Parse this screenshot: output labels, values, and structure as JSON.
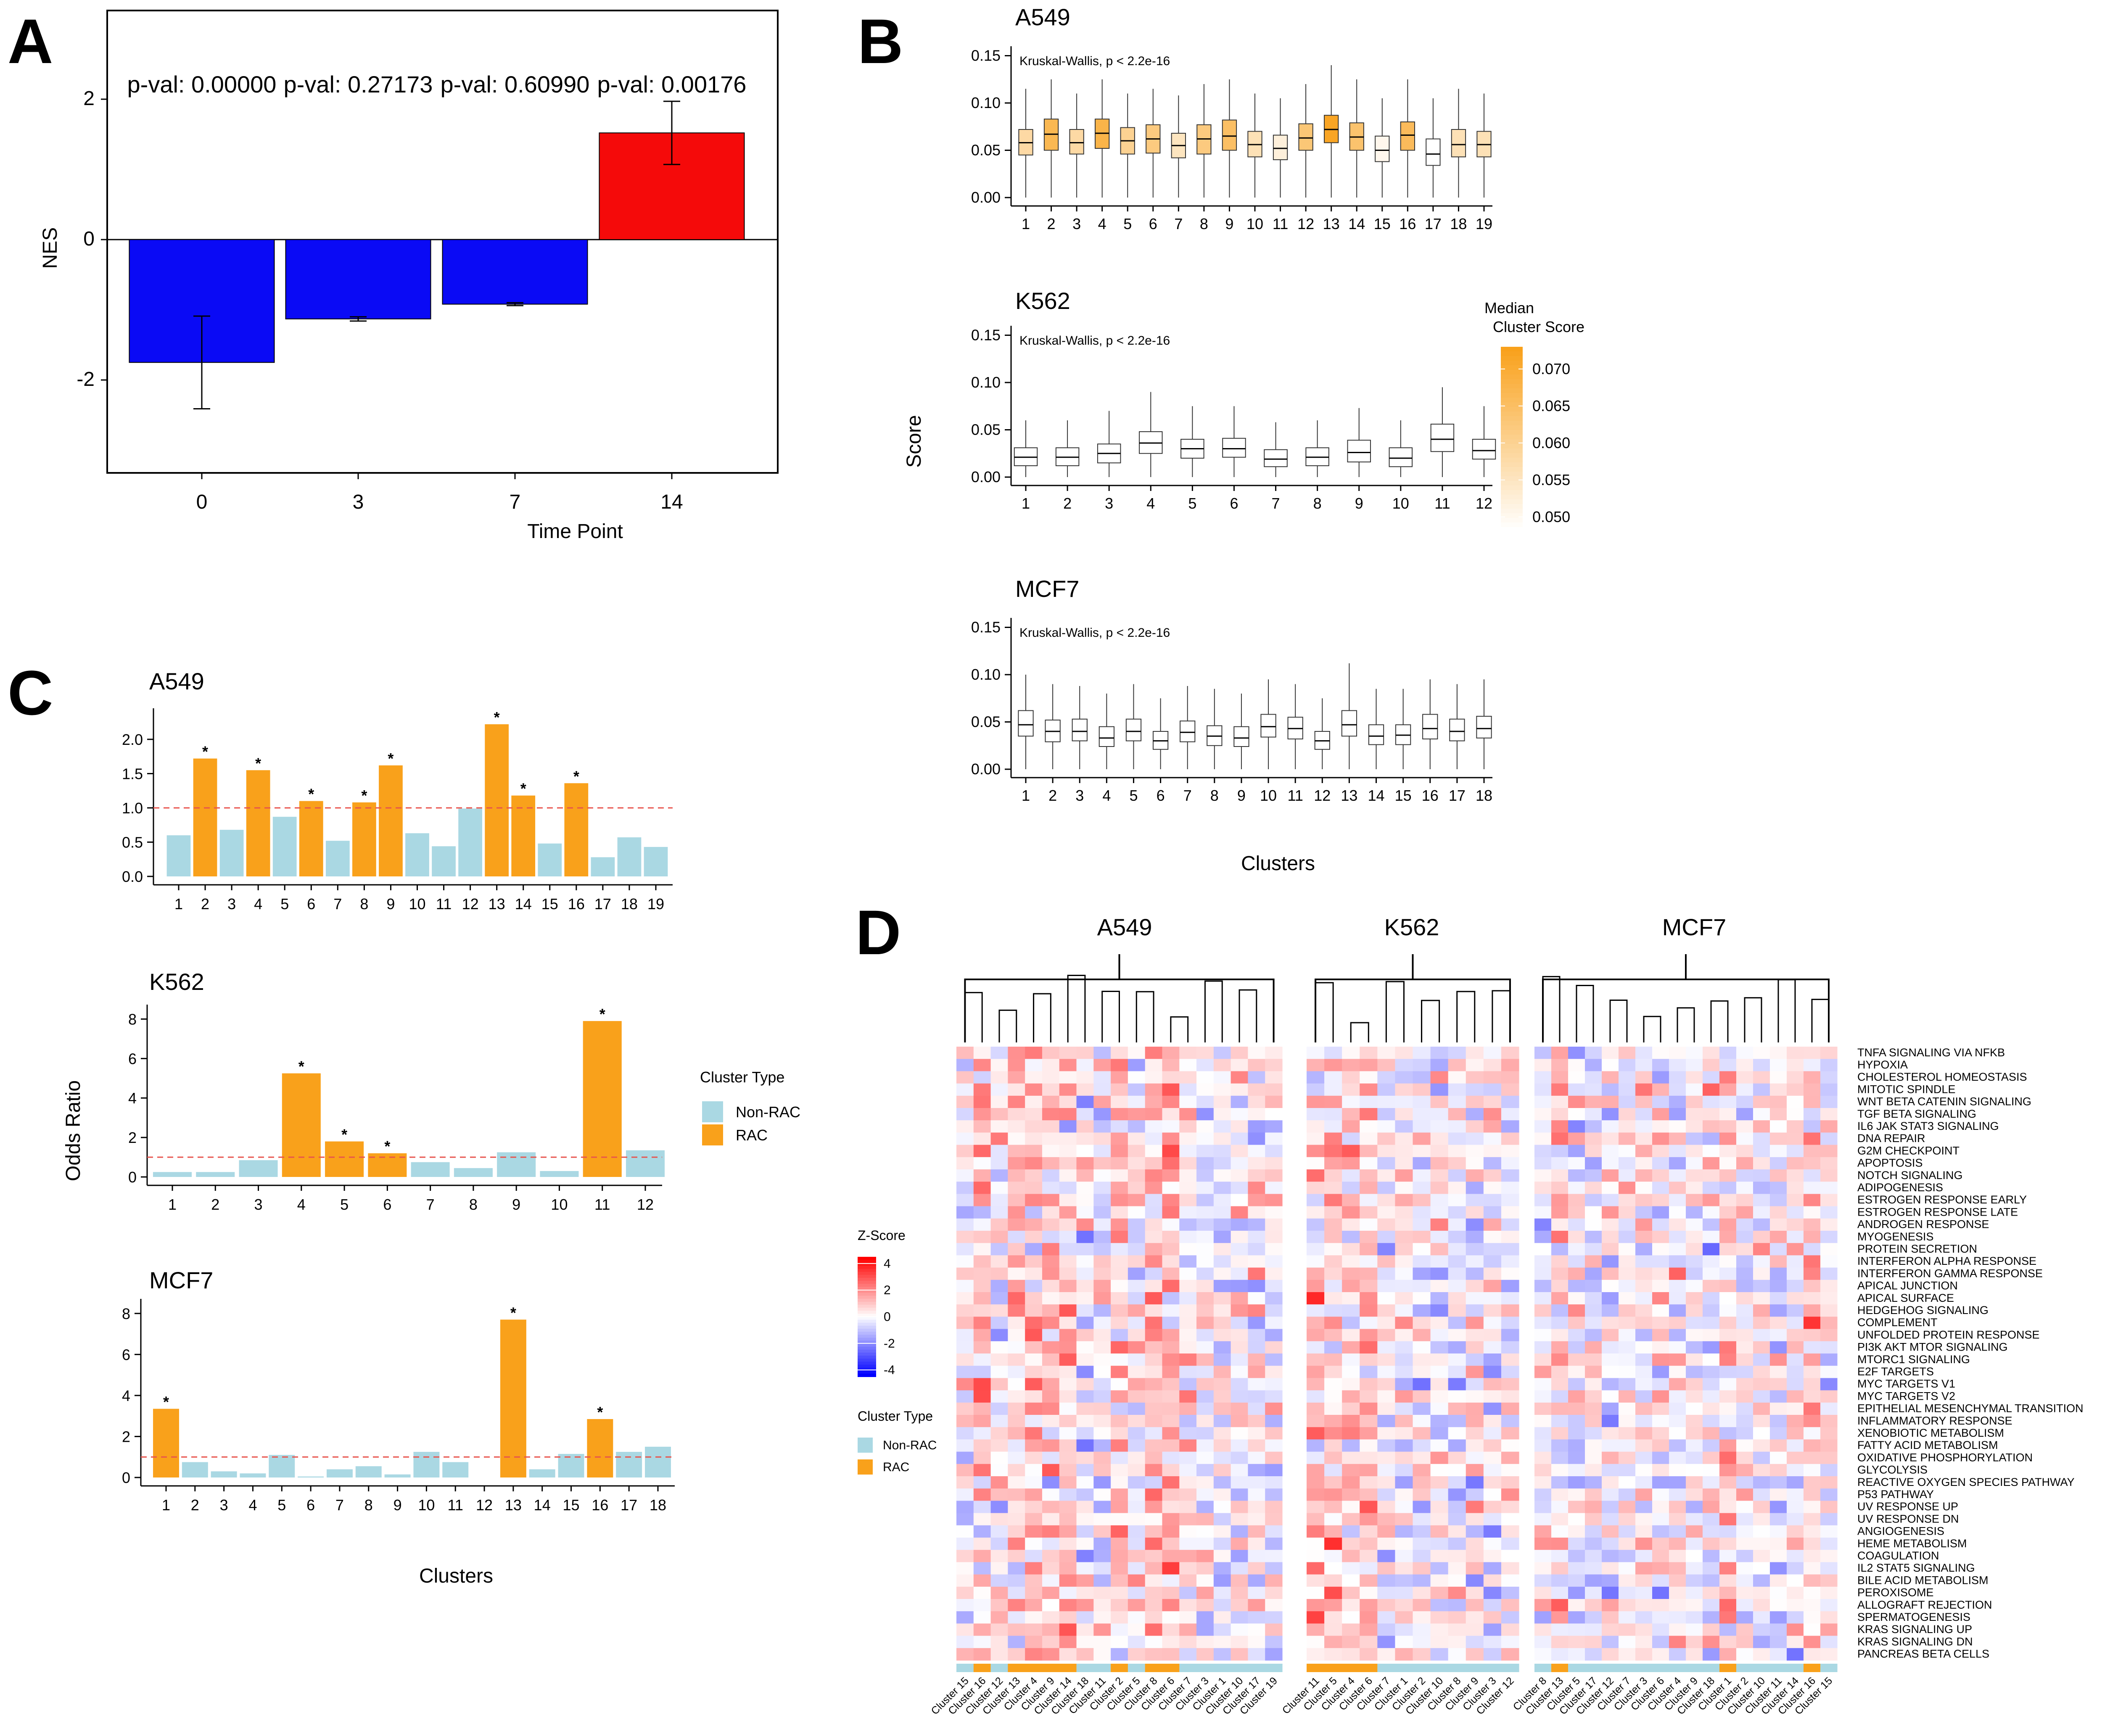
{
  "panels": {
    "A": "A",
    "B": "B",
    "C": "C",
    "D": "D"
  },
  "colors": {
    "blue": "#0a0af5",
    "red": "#f50a0a",
    "rac": "#f9a11b",
    "nonrac": "#aad8e3",
    "ref": "#e8534c"
  },
  "chart_data": [
    {
      "id": "A",
      "type": "bar",
      "categories": [
        "0",
        "3",
        "7",
        "14"
      ],
      "values": [
        -1.75,
        -1.13,
        -0.92,
        1.52
      ],
      "errors": [
        [
          -2.41,
          -1.09
        ],
        [
          -1.16,
          -1.1
        ],
        [
          -0.94,
          -0.9
        ],
        [
          1.07,
          1.97
        ]
      ],
      "bar_colors": [
        "#0a0af5",
        "#0a0af5",
        "#0a0af5",
        "#f50a0a"
      ],
      "annotations": [
        "p-val: 0.00000",
        "p-val: 0.27173",
        "p-val: 0.60990",
        "p-val: 0.00176"
      ],
      "xlabel": "Time Point",
      "ylabel": "NES",
      "yticks": [
        -2,
        0,
        2
      ],
      "ylim": [
        -3.4,
        3.3
      ]
    },
    {
      "id": "B",
      "type": "boxplot",
      "ylabel": "Score",
      "xlabel": "Clusters",
      "legend": {
        "title_line1": "Median",
        "title_line2": "Cluster Score",
        "ticks": [
          "0.070",
          "0.065",
          "0.060",
          "0.055",
          "0.050"
        ],
        "range": [
          0.048,
          0.073
        ]
      },
      "facets": [
        {
          "title": "A549",
          "test": "Kruskal-Wallis, p < 2.2e-16",
          "ylim": [
            0,
            0.16
          ],
          "yticks": [
            "0.00",
            "0.05",
            "0.10",
            "0.15"
          ],
          "categories": [
            "1",
            "2",
            "3",
            "4",
            "5",
            "6",
            "7",
            "8",
            "9",
            "10",
            "11",
            "12",
            "13",
            "14",
            "15",
            "16",
            "17",
            "18",
            "19"
          ],
          "medians": [
            0.058,
            0.067,
            0.058,
            0.068,
            0.06,
            0.062,
            0.055,
            0.062,
            0.065,
            0.056,
            0.052,
            0.063,
            0.072,
            0.064,
            0.05,
            0.066,
            0.046,
            0.056,
            0.056
          ],
          "q1": [
            0.045,
            0.05,
            0.046,
            0.052,
            0.046,
            0.047,
            0.042,
            0.046,
            0.05,
            0.043,
            0.04,
            0.05,
            0.058,
            0.05,
            0.038,
            0.05,
            0.034,
            0.043,
            0.043
          ],
          "q3": [
            0.072,
            0.083,
            0.072,
            0.083,
            0.074,
            0.077,
            0.068,
            0.077,
            0.082,
            0.07,
            0.066,
            0.078,
            0.087,
            0.079,
            0.065,
            0.08,
            0.062,
            0.072,
            0.07
          ],
          "whisk_lo": [
            0.0,
            0.0,
            0.0,
            0.0,
            0.0,
            0.0,
            0.0,
            0.0,
            0.0,
            0.0,
            0.0,
            0.0,
            0.0,
            0.0,
            0.0,
            0.0,
            0.0,
            0.0,
            0.0
          ],
          "whisk_hi": [
            0.115,
            0.125,
            0.11,
            0.125,
            0.11,
            0.115,
            0.108,
            0.12,
            0.125,
            0.11,
            0.105,
            0.12,
            0.14,
            0.125,
            0.105,
            0.125,
            0.105,
            0.115,
            0.11
          ]
        },
        {
          "title": "K562",
          "test": "Kruskal-Wallis, p < 2.2e-16",
          "ylim": [
            0,
            0.16
          ],
          "yticks": [
            "0.00",
            "0.05",
            "0.10",
            "0.15"
          ],
          "categories": [
            "1",
            "2",
            "3",
            "4",
            "5",
            "6",
            "7",
            "8",
            "9",
            "10",
            "11",
            "12"
          ],
          "medians": [
            0.021,
            0.021,
            0.025,
            0.036,
            0.03,
            0.03,
            0.019,
            0.021,
            0.026,
            0.02,
            0.04,
            0.028
          ],
          "q1": [
            0.012,
            0.012,
            0.015,
            0.025,
            0.02,
            0.021,
            0.011,
            0.012,
            0.016,
            0.011,
            0.027,
            0.019
          ],
          "q3": [
            0.031,
            0.031,
            0.035,
            0.048,
            0.04,
            0.041,
            0.029,
            0.031,
            0.039,
            0.031,
            0.056,
            0.04
          ],
          "whisk_lo": [
            0.0,
            0.0,
            0.0,
            0.0,
            0.0,
            0.0,
            0.0,
            0.0,
            0.0,
            0.0,
            0.0,
            0.0
          ],
          "whisk_hi": [
            0.06,
            0.06,
            0.07,
            0.09,
            0.075,
            0.075,
            0.058,
            0.06,
            0.073,
            0.06,
            0.095,
            0.075
          ]
        },
        {
          "title": "MCF7",
          "test": "Kruskal-Wallis, p < 2.2e-16",
          "ylim": [
            0,
            0.16
          ],
          "yticks": [
            "0.00",
            "0.05",
            "0.10",
            "0.15"
          ],
          "categories": [
            "1",
            "2",
            "3",
            "4",
            "5",
            "6",
            "7",
            "8",
            "9",
            "10",
            "11",
            "12",
            "13",
            "14",
            "15",
            "16",
            "17",
            "18"
          ],
          "medians": [
            0.047,
            0.04,
            0.04,
            0.033,
            0.04,
            0.03,
            0.039,
            0.035,
            0.033,
            0.045,
            0.043,
            0.03,
            0.047,
            0.035,
            0.036,
            0.043,
            0.04,
            0.043
          ],
          "q1": [
            0.035,
            0.029,
            0.03,
            0.024,
            0.03,
            0.021,
            0.029,
            0.025,
            0.024,
            0.034,
            0.032,
            0.021,
            0.035,
            0.026,
            0.026,
            0.032,
            0.03,
            0.033
          ],
          "q3": [
            0.062,
            0.052,
            0.053,
            0.045,
            0.053,
            0.04,
            0.051,
            0.046,
            0.045,
            0.058,
            0.055,
            0.04,
            0.062,
            0.047,
            0.047,
            0.058,
            0.053,
            0.056
          ],
          "whisk_lo": [
            0.0,
            0.0,
            0.0,
            0.0,
            0.0,
            0.0,
            0.0,
            0.0,
            0.0,
            0.0,
            0.0,
            0.0,
            0.0,
            0.0,
            0.0,
            0.0,
            0.0,
            0.0
          ],
          "whisk_hi": [
            0.1,
            0.09,
            0.088,
            0.08,
            0.09,
            0.075,
            0.088,
            0.085,
            0.08,
            0.095,
            0.09,
            0.075,
            0.112,
            0.085,
            0.085,
            0.095,
            0.09,
            0.095
          ]
        }
      ]
    },
    {
      "id": "C",
      "type": "bar",
      "ylabel": "Odds Ratio",
      "xlabel": "Clusters",
      "legend": {
        "title": "Cluster Type",
        "items": [
          "Non-RAC",
          "RAC"
        ]
      },
      "reference_line": 1.0,
      "facets": [
        {
          "title": "A549",
          "ylim": [
            0,
            2.3
          ],
          "yticks": [
            "0.0",
            "0.5",
            "1.0",
            "1.5",
            "2.0"
          ],
          "ytick_values": [
            0,
            0.5,
            1.0,
            1.5,
            2.0
          ],
          "categories": [
            "1",
            "2",
            "3",
            "4",
            "5",
            "6",
            "7",
            "8",
            "9",
            "10",
            "11",
            "12",
            "13",
            "14",
            "15",
            "16",
            "17",
            "18",
            "19"
          ],
          "values": [
            0.6,
            1.72,
            0.68,
            1.55,
            0.87,
            1.1,
            0.52,
            1.08,
            1.62,
            0.63,
            0.44,
            0.99,
            2.22,
            1.18,
            0.48,
            1.36,
            0.28,
            0.57,
            0.43
          ],
          "rac": [
            false,
            true,
            false,
            true,
            false,
            true,
            false,
            true,
            true,
            false,
            false,
            false,
            true,
            true,
            false,
            true,
            false,
            false,
            false
          ],
          "sig": [
            false,
            true,
            false,
            true,
            false,
            true,
            false,
            true,
            true,
            false,
            false,
            false,
            true,
            true,
            false,
            true,
            false,
            false,
            false
          ]
        },
        {
          "title": "K562",
          "ylim": [
            0,
            8.2
          ],
          "yticks": [
            "0",
            "2",
            "4",
            "6",
            "8"
          ],
          "ytick_values": [
            0,
            2,
            4,
            6,
            8
          ],
          "categories": [
            "1",
            "2",
            "3",
            "4",
            "5",
            "6",
            "7",
            "8",
            "9",
            "10",
            "11",
            "12"
          ],
          "values": [
            0.25,
            0.25,
            0.85,
            5.25,
            1.8,
            1.2,
            0.75,
            0.45,
            1.25,
            0.3,
            7.9,
            1.35
          ],
          "rac": [
            false,
            false,
            false,
            true,
            true,
            true,
            false,
            false,
            false,
            false,
            true,
            false
          ],
          "sig": [
            false,
            false,
            false,
            true,
            true,
            true,
            false,
            false,
            false,
            false,
            true,
            false
          ]
        },
        {
          "title": "MCF7",
          "ylim": [
            0,
            8.2
          ],
          "yticks": [
            "0",
            "2",
            "4",
            "6",
            "8"
          ],
          "ytick_values": [
            0,
            2,
            4,
            6,
            8
          ],
          "categories": [
            "1",
            "2",
            "3",
            "4",
            "5",
            "6",
            "7",
            "8",
            "9",
            "10",
            "11",
            "12",
            "13",
            "14",
            "15",
            "16",
            "17",
            "18"
          ],
          "values": [
            3.35,
            0.75,
            0.3,
            0.2,
            1.1,
            0.05,
            0.4,
            0.55,
            0.15,
            1.25,
            0.75,
            0.0,
            7.7,
            0.4,
            1.15,
            2.85,
            1.25,
            1.5
          ],
          "rac": [
            true,
            false,
            false,
            false,
            false,
            false,
            false,
            false,
            false,
            false,
            false,
            false,
            true,
            false,
            false,
            true,
            false,
            false
          ],
          "sig": [
            true,
            false,
            false,
            false,
            false,
            false,
            false,
            false,
            false,
            false,
            false,
            false,
            true,
            false,
            false,
            true,
            false,
            false
          ]
        }
      ]
    },
    {
      "id": "D",
      "type": "heatmap",
      "legend": {
        "title": "Z-Score",
        "ticks": [
          "4",
          "2",
          "0",
          "-2",
          "-4"
        ],
        "range": [
          -4.5,
          4.5
        ]
      },
      "type_legend": {
        "title": "Cluster Type",
        "items": [
          "Non-RAC",
          "RAC"
        ]
      },
      "rows": [
        "TNFA SIGNALING VIA NFKB",
        "HYPOXIA",
        "CHOLESTEROL HOMEOSTASIS",
        "MITOTIC SPINDLE",
        "WNT BETA CATENIN SIGNALING",
        "TGF BETA SIGNALING",
        "IL6 JAK STAT3 SIGNALING",
        "DNA REPAIR",
        "G2M CHECKPOINT",
        "APOPTOSIS",
        "NOTCH SIGNALING",
        "ADIPOGENESIS",
        "ESTROGEN RESPONSE EARLY",
        "ESTROGEN RESPONSE LATE",
        "ANDROGEN RESPONSE",
        "MYOGENESIS",
        "PROTEIN SECRETION",
        "INTERFERON ALPHA RESPONSE",
        "INTERFERON GAMMA RESPONSE",
        "APICAL JUNCTION",
        "APICAL SURFACE",
        "HEDGEHOG SIGNALING",
        "COMPLEMENT",
        "UNFOLDED PROTEIN RESPONSE",
        "PI3K AKT MTOR SIGNALING",
        "MTORC1 SIGNALING",
        "E2F TARGETS",
        "MYC TARGETS V1",
        "MYC TARGETS V2",
        "EPITHELIAL MESENCHYMAL TRANSITION",
        "INFLAMMATORY RESPONSE",
        "XENOBIOTIC METABOLISM",
        "FATTY ACID METABOLISM",
        "OXIDATIVE PHOSPHORYLATION",
        "GLYCOLYSIS",
        "REACTIVE OXYGEN SPECIES PATHWAY",
        "P53 PATHWAY",
        "UV RESPONSE UP",
        "UV RESPONSE DN",
        "ANGIOGENESIS",
        "HEME METABOLISM",
        "COAGULATION",
        "IL2 STAT5 SIGNALING",
        "BILE ACID METABOLISM",
        "PEROXISOME",
        "ALLOGRAFT REJECTION",
        "SPERMATOGENESIS",
        "KRAS SIGNALING UP",
        "KRAS SIGNALING DN",
        "PANCREAS BETA CELLS"
      ],
      "groups": [
        {
          "title": "A549",
          "columns": [
            "Cluster 15",
            "Cluster 16",
            "Cluster 12",
            "Cluster 13",
            "Cluster 4",
            "Cluster 9",
            "Cluster 14",
            "Cluster 18",
            "Cluster 11",
            "Cluster 2",
            "Cluster 5",
            "Cluster 8",
            "Cluster 6",
            "Cluster 7",
            "Cluster 3",
            "Cluster 1",
            "Cluster 10",
            "Cluster 17",
            "Cluster 19"
          ],
          "rac": [
            false,
            true,
            false,
            true,
            true,
            true,
            true,
            false,
            false,
            true,
            false,
            true,
            true,
            false,
            false,
            false,
            false,
            false,
            false
          ]
        },
        {
          "title": "K562",
          "columns": [
            "Cluster 11",
            "Cluster 5",
            "Cluster 4",
            "Cluster 6",
            "Cluster 7",
            "Cluster 1",
            "Cluster 2",
            "Cluster 10",
            "Cluster 8",
            "Cluster 9",
            "Cluster 3",
            "Cluster 12"
          ],
          "rac": [
            true,
            true,
            true,
            true,
            false,
            false,
            false,
            false,
            false,
            false,
            false,
            false
          ]
        },
        {
          "title": "MCF7",
          "columns": [
            "Cluster 8",
            "Cluster 13",
            "Cluster 5",
            "Cluster 17",
            "Cluster 12",
            "Cluster 7",
            "Cluster 3",
            "Cluster 6",
            "Cluster 4",
            "Cluster 9",
            "Cluster 18",
            "Cluster 1",
            "Cluster 2",
            "Cluster 10",
            "Cluster 11",
            "Cluster 14",
            "Cluster 16",
            "Cluster 15"
          ],
          "rac": [
            false,
            true,
            false,
            false,
            false,
            false,
            false,
            false,
            false,
            false,
            false,
            true,
            false,
            false,
            false,
            false,
            true,
            false
          ]
        }
      ]
    }
  ]
}
